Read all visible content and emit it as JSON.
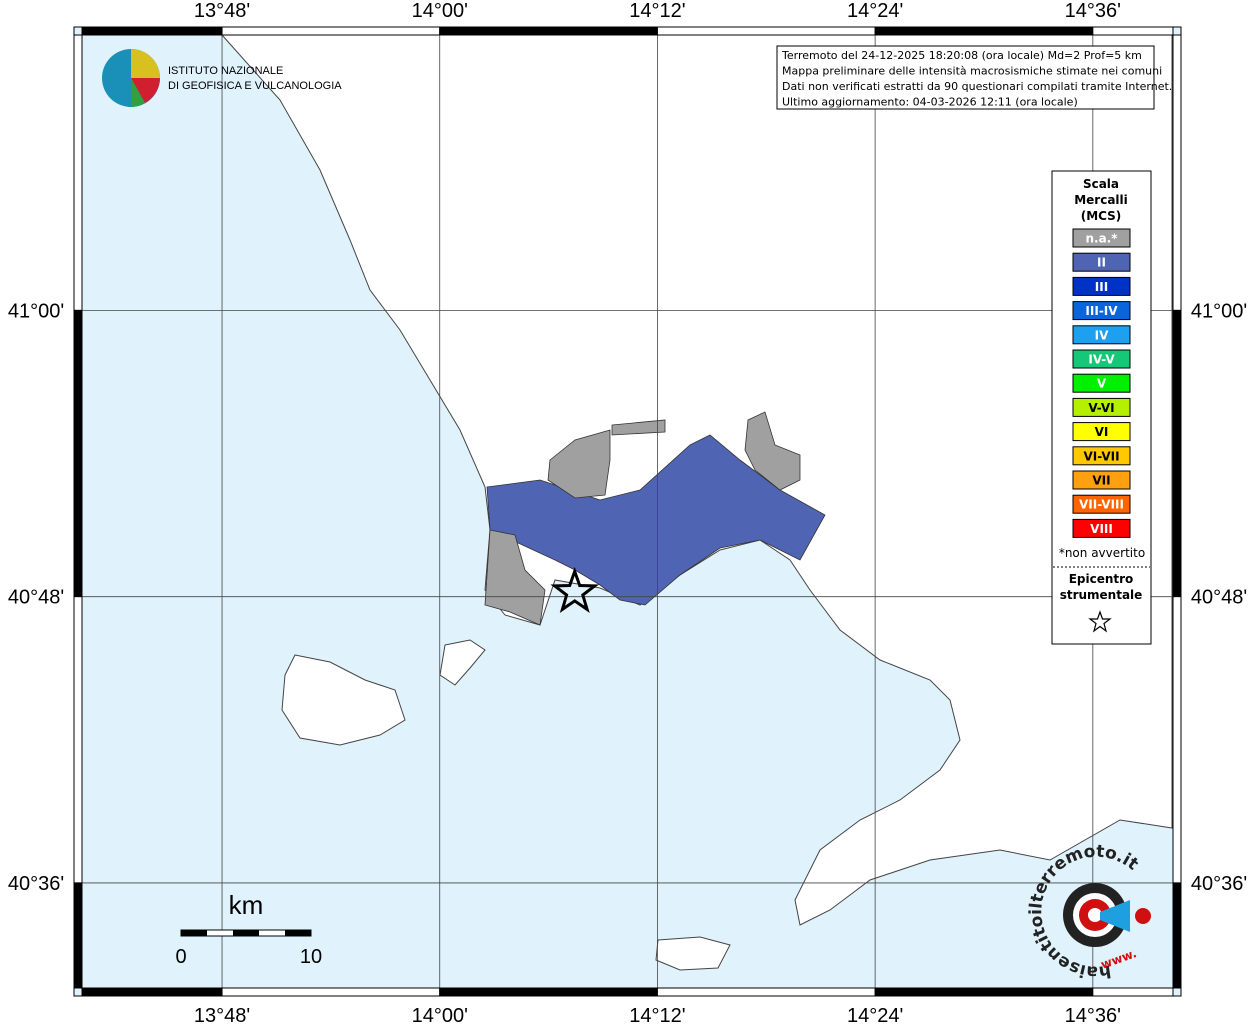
{
  "header": {
    "institute_line1": "ISTITUTO NAZIONALE",
    "institute_line2": "DI GEOFISICA E VULCANOLOGIA"
  },
  "info": [
    "Terremoto del 24-12-2025 18:20:08 (ora locale) Md=2 Prof=5 km",
    "Mappa preliminare delle intensità macrosismiche stimate nei comuni",
    "Dati non verificati estratti da 90 questionari compilati tramite Internet.",
    "Ultimo aggiornamento: 04-03-2026 12:11 (ora locale)"
  ],
  "map": {
    "lonlim": [
      13.664,
      14.681
    ],
    "latlim": [
      40.521,
      41.198
    ],
    "lon_ticks": [
      {
        "value": 13.8,
        "label": "13°48'"
      },
      {
        "value": 14.0,
        "label": "14°00'"
      },
      {
        "value": 14.2,
        "label": "14°12'"
      },
      {
        "value": 14.4,
        "label": "14°24'"
      },
      {
        "value": 14.6,
        "label": "14°36'"
      }
    ],
    "lat_ticks": [
      {
        "value": 41.0,
        "label": "41°00'"
      },
      {
        "value": 40.8,
        "label": "40°48'"
      },
      {
        "value": 40.6,
        "label": "40°36'"
      }
    ],
    "epicenter": {
      "lon": 14.124,
      "lat": 40.803
    }
  },
  "legend": {
    "title": [
      "Scala",
      "Mercalli",
      "(MCS)"
    ],
    "items": [
      {
        "label": "n.a.*",
        "color": "#a0a0a0"
      },
      {
        "label": "II",
        "color": "#5064b4"
      },
      {
        "label": "III",
        "color": "#0032c8"
      },
      {
        "label": "III-IV",
        "color": "#0a64dc"
      },
      {
        "label": "IV",
        "color": "#1ea0f0"
      },
      {
        "label": "IV-V",
        "color": "#14c878"
      },
      {
        "label": "V",
        "color": "#00f000"
      },
      {
        "label": "V-VI",
        "color": "#b4f000"
      },
      {
        "label": "VI",
        "color": "#ffff00"
      },
      {
        "label": "VI-VII",
        "color": "#ffc800"
      },
      {
        "label": "VII",
        "color": "#ffa010"
      },
      {
        "label": "VII-VIII",
        "color": "#ff6400"
      },
      {
        "label": "VIII",
        "color": "#ff0000"
      }
    ],
    "note": "*non avvertito",
    "epicenter_label": [
      "Epicentro",
      "strumentale"
    ]
  },
  "scale_bar": {
    "unit": "km",
    "labels": [
      "0",
      "10"
    ]
  },
  "watermark": {
    "text": "haisentitoilterremoto.it",
    "prefix": "www."
  }
}
